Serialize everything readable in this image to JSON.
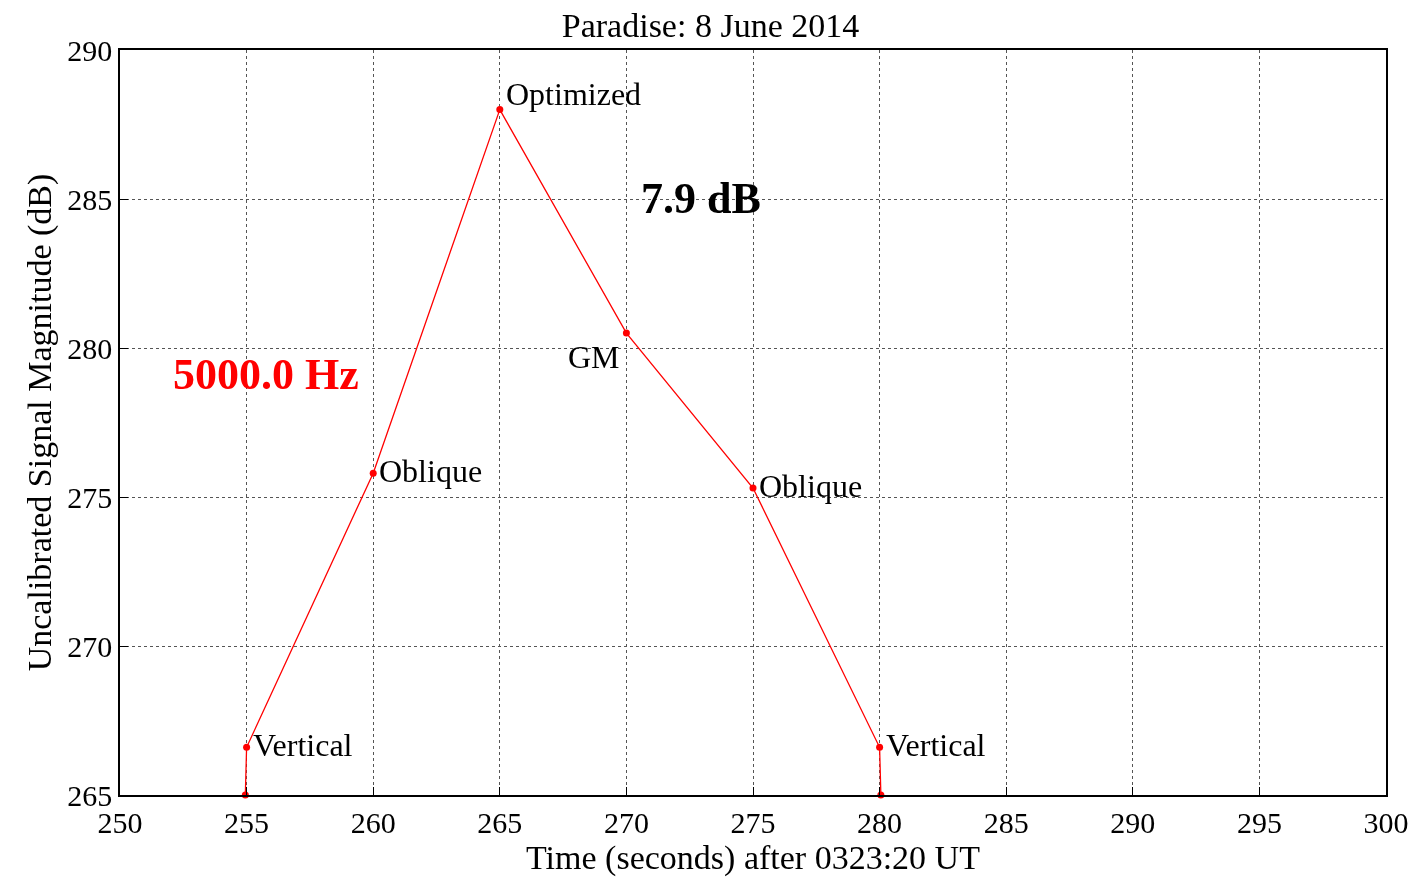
{
  "chart_data": {
    "type": "line",
    "title": "Paradise: 8 June 2014",
    "xlabel": "Time (seconds) after 0323:20 UT",
    "ylabel": "Uncalibrated Signal Magnitude (dB)",
    "x": [
      254.95,
      255,
      260,
      265,
      270,
      275,
      280,
      280.05
    ],
    "series": [
      {
        "color": "#ff0000",
        "values": [
          265,
          266.6,
          275.8,
          288.0,
          280.5,
          275.3,
          266.6,
          265
        ]
      }
    ],
    "xlim": [
      250,
      300
    ],
    "xticks": [
      250,
      255,
      260,
      265,
      270,
      275,
      280,
      285,
      290,
      295,
      300
    ],
    "ylim": [
      265,
      290
    ],
    "yticks": [
      265,
      270,
      275,
      280,
      285,
      290
    ],
    "grid": true,
    "marker": "circle",
    "line_style": "solid",
    "annotations": [
      {
        "text": "Vertical",
        "x": 255,
        "y": 266.6
      },
      {
        "text": "Oblique",
        "x": 260,
        "y": 275.8
      },
      {
        "text": "Optimized",
        "x": 265,
        "y": 288.0
      },
      {
        "text": "GM",
        "x": 270,
        "y": 280.5
      },
      {
        "text": "Oblique",
        "x": 275,
        "y": 275.3
      },
      {
        "text": "Vertical",
        "x": 280,
        "y": 266.6
      },
      "5000.0 Hz",
      "7.9 dB"
    ]
  }
}
